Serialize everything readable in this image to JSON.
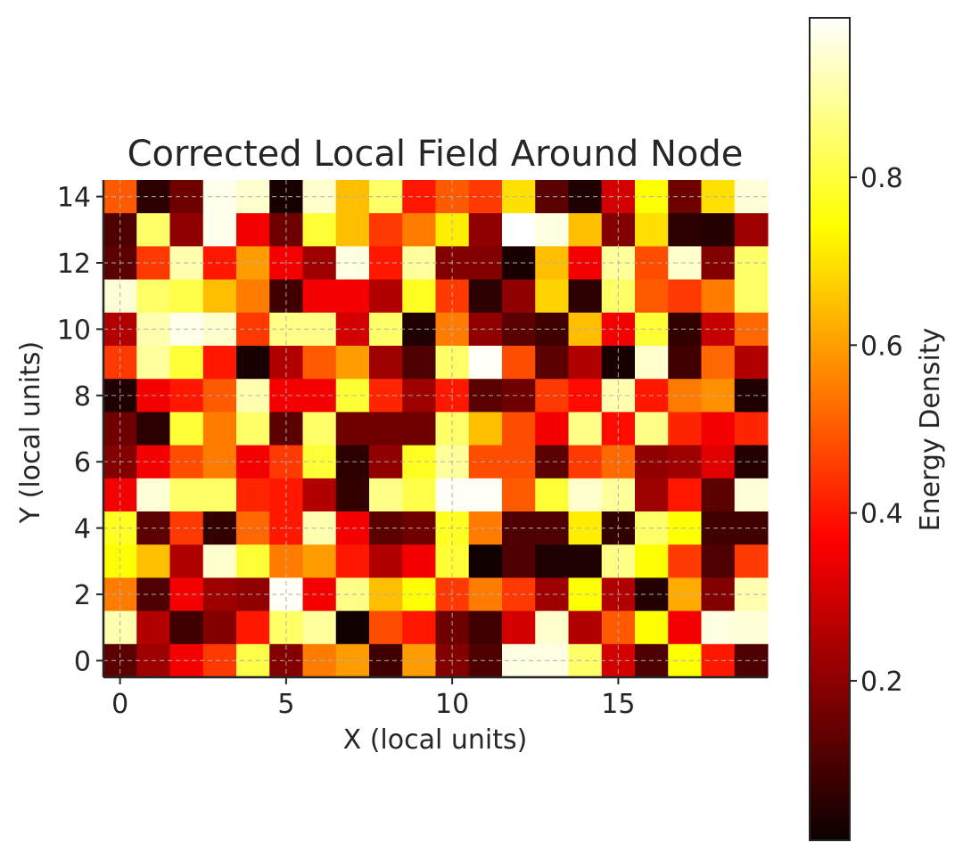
{
  "chart_data": {
    "type": "heatmap",
    "title": "Corrected Local Field Around Node",
    "xlabel": "X (local units)",
    "ylabel": "Y (local units)",
    "colorbar_label": "Energy Density",
    "colormap": "hot",
    "x_ticks": [
      0,
      5,
      10,
      15
    ],
    "y_ticks": [
      0,
      2,
      4,
      6,
      8,
      10,
      12,
      14
    ],
    "colorbar_ticks": [
      0.2,
      0.4,
      0.6,
      0.8
    ],
    "xlim": [
      -0.5,
      19.5
    ],
    "ylim": [
      -0.5,
      14.5
    ],
    "vmin": 0.0,
    "vmax": 1.0,
    "grid": true,
    "rows_top_to_bottom": [
      [
        0.5,
        0.05,
        0.15,
        0.98,
        0.95,
        0.02,
        0.95,
        0.65,
        0.85,
        0.4,
        0.5,
        0.45,
        0.7,
        0.12,
        0.03,
        0.3,
        0.75,
        0.15,
        0.7,
        0.96
      ],
      [
        0.1,
        0.85,
        0.2,
        0.98,
        0.35,
        0.15,
        0.8,
        0.65,
        0.45,
        0.55,
        0.72,
        0.2,
        1.0,
        0.97,
        0.65,
        0.18,
        0.7,
        0.05,
        0.04,
        0.22
      ],
      [
        0.12,
        0.45,
        0.92,
        0.4,
        0.6,
        0.35,
        0.22,
        0.97,
        0.4,
        0.9,
        0.18,
        0.18,
        0.02,
        0.65,
        0.35,
        0.9,
        0.48,
        0.95,
        0.18,
        0.85
      ],
      [
        0.96,
        0.85,
        0.82,
        0.65,
        0.55,
        0.08,
        0.35,
        0.35,
        0.25,
        0.78,
        0.45,
        0.05,
        0.2,
        0.68,
        0.05,
        0.85,
        0.5,
        0.45,
        0.55,
        0.85
      ],
      [
        0.25,
        0.92,
        0.98,
        0.95,
        0.45,
        0.88,
        0.88,
        0.3,
        0.85,
        0.03,
        0.55,
        0.2,
        0.12,
        0.08,
        0.65,
        0.35,
        0.8,
        0.06,
        0.28,
        0.52
      ],
      [
        0.45,
        0.9,
        0.8,
        0.4,
        0.02,
        0.25,
        0.5,
        0.6,
        0.22,
        0.1,
        0.85,
        0.99,
        0.48,
        0.12,
        0.25,
        0.02,
        0.95,
        0.08,
        0.52,
        0.25
      ],
      [
        0.03,
        0.35,
        0.4,
        0.5,
        0.92,
        0.35,
        0.35,
        0.8,
        0.42,
        0.22,
        0.4,
        0.12,
        0.15,
        0.45,
        0.38,
        0.92,
        0.4,
        0.55,
        0.58,
        0.03
      ],
      [
        0.15,
        0.05,
        0.8,
        0.55,
        0.85,
        0.12,
        0.85,
        0.15,
        0.15,
        0.15,
        0.85,
        0.65,
        0.48,
        0.35,
        0.88,
        0.38,
        0.88,
        0.42,
        0.35,
        0.42
      ],
      [
        0.18,
        0.35,
        0.48,
        0.55,
        0.35,
        0.45,
        0.8,
        0.05,
        0.2,
        0.78,
        0.9,
        0.48,
        0.48,
        0.12,
        0.45,
        0.52,
        0.2,
        0.22,
        0.32,
        0.04
      ],
      [
        0.35,
        0.96,
        0.85,
        0.85,
        0.42,
        0.4,
        0.25,
        0.06,
        0.88,
        0.82,
        0.99,
        0.99,
        0.5,
        0.8,
        0.95,
        0.9,
        0.22,
        0.4,
        0.12,
        0.96
      ],
      [
        0.78,
        0.12,
        0.45,
        0.06,
        0.52,
        0.4,
        0.92,
        0.35,
        0.12,
        0.15,
        0.78,
        0.55,
        0.1,
        0.1,
        0.72,
        0.06,
        0.85,
        0.75,
        0.08,
        0.08
      ],
      [
        0.75,
        0.65,
        0.25,
        0.95,
        0.8,
        0.55,
        0.6,
        0.4,
        0.25,
        0.35,
        0.8,
        0.01,
        0.1,
        0.03,
        0.03,
        0.88,
        0.75,
        0.45,
        0.1,
        0.45
      ],
      [
        0.55,
        0.1,
        0.35,
        0.22,
        0.2,
        0.99,
        0.35,
        0.88,
        0.65,
        0.75,
        0.45,
        0.55,
        0.45,
        0.22,
        0.75,
        0.25,
        0.04,
        0.62,
        0.18,
        0.92
      ],
      [
        0.92,
        0.25,
        0.08,
        0.18,
        0.4,
        0.85,
        0.9,
        0.01,
        0.48,
        0.4,
        0.15,
        0.08,
        0.3,
        0.95,
        0.25,
        0.5,
        0.75,
        0.35,
        0.97,
        0.96
      ],
      [
        0.12,
        0.22,
        0.35,
        0.45,
        0.82,
        0.18,
        0.55,
        0.6,
        0.08,
        0.6,
        0.18,
        0.1,
        0.97,
        0.97,
        0.85,
        0.3,
        0.1,
        0.75,
        0.4,
        0.1
      ]
    ]
  }
}
